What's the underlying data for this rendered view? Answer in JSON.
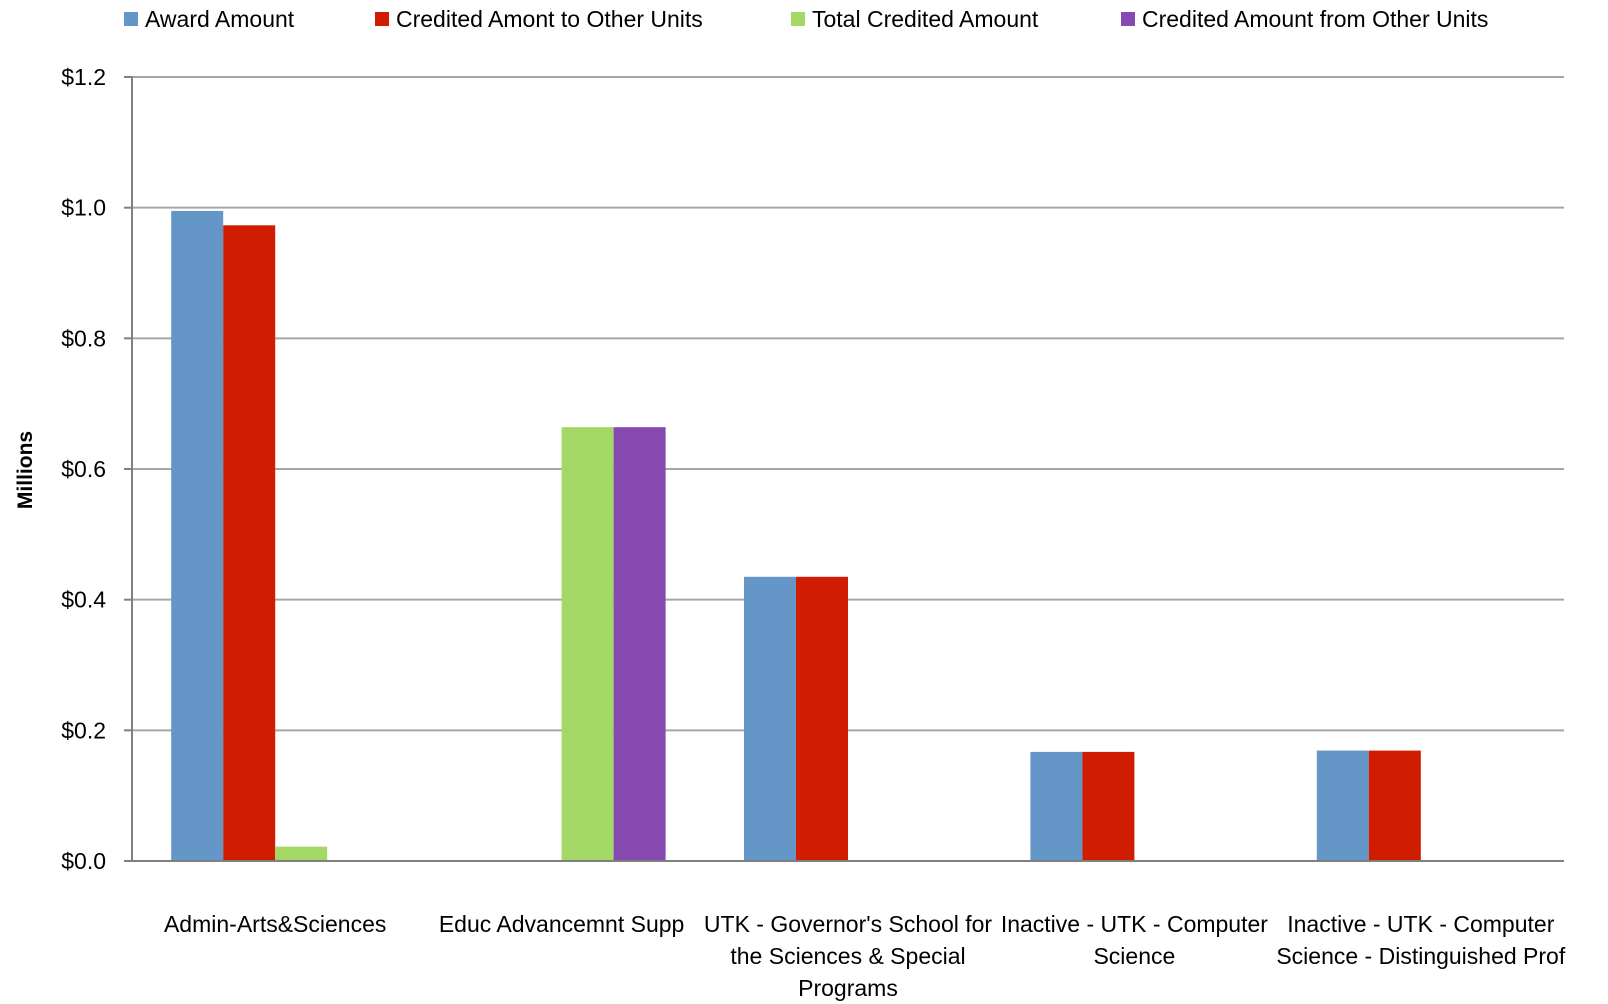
{
  "chart_data": {
    "type": "bar",
    "ylabel": "Millions",
    "ylim": [
      0,
      1.2
    ],
    "yticks": [
      "$0.0",
      "$0.2",
      "$0.4",
      "$0.6",
      "$0.8",
      "$1.0",
      "$1.2"
    ],
    "ytick_values": [
      0,
      0.2,
      0.4,
      0.6,
      0.8,
      1.0,
      1.2
    ],
    "grid": true,
    "legend_position": "top",
    "categories": [
      "Admin-Arts&Sciences",
      "Educ Advancemnt Supp",
      "UTK - Governor's School for the Sciences & Special Programs",
      "Inactive - UTK - Computer Science",
      "Inactive - UTK - Computer Science - Distinguished Prof"
    ],
    "series": [
      {
        "name": "Award Amount",
        "color": "#6496c8",
        "values": [
          0.995,
          0,
          0.435,
          0.167,
          0.169
        ]
      },
      {
        "name": "Credited Amont to Other Units",
        "color": "#d01c00",
        "values": [
          0.973,
          0,
          0.435,
          0.167,
          0.169
        ]
      },
      {
        "name": "Total Credited Amount",
        "color": "#a3d766",
        "values": [
          0.022,
          0.664,
          0,
          0,
          0
        ]
      },
      {
        "name": "Credited Amount from Other Units",
        "color": "#8649b0",
        "values": [
          0,
          0.664,
          0,
          0,
          0
        ]
      }
    ]
  }
}
